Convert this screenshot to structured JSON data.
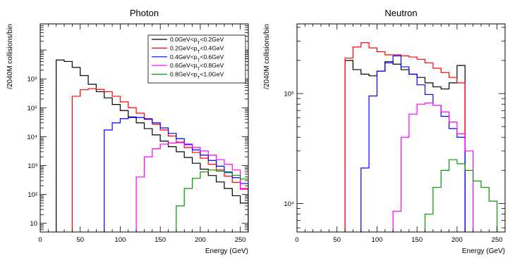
{
  "chart_data": [
    {
      "type": "histogram-step",
      "title": "Photon",
      "xlabel": "Energy (GeV)",
      "ylabel": "/2040M collisions/bin",
      "xlim": [
        0,
        260
      ],
      "ylim": [
        5,
        80000000
      ],
      "yscale": "log",
      "x_ticks": [
        0,
        50,
        100,
        150,
        200,
        250
      ],
      "y_ticks": [
        {
          "v": 10,
          "label": "10"
        },
        {
          "v": 100,
          "label": "10²"
        },
        {
          "v": 1000,
          "label": "10³"
        },
        {
          "v": 10000,
          "label": "10⁴"
        },
        {
          "v": 100000,
          "label": "10⁵"
        },
        {
          "v": 1000000,
          "label": "10⁶"
        }
      ],
      "bin_width": 10,
      "legend": {
        "position": "top-right",
        "entries": [
          "0.0GeV<p_T<0.2GeV",
          "0.2GeV<p_T<0.4GeV",
          "0.4GeV<p_T<0.6GeV",
          "0.6GeV<p_T<0.8GeV",
          "0.8GeV<p_T<1.0GeV"
        ]
      },
      "series": [
        {
          "name": "0.0GeV<p_T<0.2GeV",
          "color": "#000000",
          "x_start": 20,
          "values": [
            4500000,
            4000000,
            2500000,
            1300000,
            650000,
            360000,
            220000,
            130000,
            80000,
            48000,
            30000,
            19000,
            11500,
            7000,
            4500,
            3000,
            1900,
            1200,
            750,
            450,
            270,
            160,
            90,
            50
          ]
        },
        {
          "name": "0.2GeV<p_T<0.4GeV",
          "color": "#ff0000",
          "x_start": 40,
          "values": [
            250000,
            420000,
            460000,
            430000,
            360000,
            250000,
            160000,
            100000,
            65000,
            42000,
            27000,
            17000,
            10500,
            6500,
            4200,
            2800,
            1800,
            1100,
            700,
            430,
            260,
            160
          ]
        },
        {
          "name": "0.4GeV<p_T<0.6GeV",
          "color": "#0000ff",
          "x_start": 80,
          "values": [
            17000,
            30000,
            42000,
            46000,
            46000,
            40000,
            30000,
            20000,
            13000,
            8500,
            5500,
            3500,
            2300,
            1500,
            950,
            600,
            380,
            240
          ]
        },
        {
          "name": "0.6GeV<p_T<0.8GeV",
          "color": "#ff00ff",
          "x_start": 120,
          "values": [
            400,
            2000,
            3800,
            5500,
            6000,
            6200,
            5200,
            4200,
            3200,
            2300,
            1600,
            1100,
            700,
            150
          ]
        },
        {
          "name": "0.8GeV<p_T<1.0GeV",
          "color": "#009900",
          "x_start": 150,
          "values": [
            3,
            3,
            40,
            160,
            360,
            600,
            700,
            640,
            560,
            460,
            340,
            210
          ]
        }
      ]
    },
    {
      "type": "histogram-step",
      "title": "Neutron",
      "xlabel": "Energy (GeV)",
      "ylabel": "/2040M collisions/bin",
      "xlim": [
        0,
        260
      ],
      "ylim": [
        5500,
        430000
      ],
      "yscale": "log",
      "x_ticks": [
        0,
        50,
        100,
        150,
        200,
        250
      ],
      "y_ticks": [
        {
          "v": 10000,
          "label": "10⁴"
        },
        {
          "v": 100000,
          "label": "10⁵"
        }
      ],
      "bin_width": 10,
      "series": [
        {
          "name": "0.0GeV<p_T<0.2GeV",
          "color": "#000000",
          "x_start": 60,
          "values": [
            200000,
            165000,
            150000,
            145000,
            160000,
            195000,
            185000,
            165000,
            150000,
            140000,
            125000,
            115000,
            110000,
            125000,
            180000
          ]
        },
        {
          "name": "0.2GeV<p_T<0.4GeV",
          "color": "#ff0000",
          "x_start": 60,
          "values": [
            210000,
            265000,
            290000,
            260000,
            240000,
            225000,
            225000,
            220000,
            215000,
            205000,
            190000,
            170000,
            155000,
            140000,
            125000
          ]
        },
        {
          "name": "0.4GeV<p_T<0.6GeV",
          "color": "#0000ff",
          "x_start": 80,
          "values": [
            21000,
            95000,
            160000,
            190000,
            220000,
            175000,
            150000,
            120000,
            98000,
            78000,
            62000,
            48000,
            40000
          ]
        },
        {
          "name": "0.6GeV<p_T<0.8GeV",
          "color": "#ff00ff",
          "x_start": 120,
          "values": [
            8500,
            40000,
            65000,
            80000,
            82000,
            78000,
            68000,
            55000,
            43000,
            30000
          ]
        },
        {
          "name": "0.8GeV<p_T<1.0GeV",
          "color": "#009900",
          "x_start": 160,
          "values": [
            8000,
            14000,
            20000,
            25000,
            23000,
            20000,
            16000,
            14000,
            10500
          ]
        }
      ]
    }
  ]
}
